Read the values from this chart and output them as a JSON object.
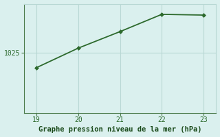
{
  "x": [
    19,
    20,
    21,
    22,
    23
  ],
  "y": [
    1023.0,
    1025.6,
    1027.8,
    1030.1,
    1030.0
  ],
  "line_color": "#2d6a2d",
  "marker_color": "#2d6a2d",
  "bg_color": "#daf0ee",
  "grid_color": "#b8d8d4",
  "xlabel": "Graphe pression niveau de la mer (hPa)",
  "xlabel_color": "#1a4a1a",
  "tick_color": "#2d6a2d",
  "ytick_value": 1025,
  "ytick_label": "1025",
  "ylim_min": 1017.0,
  "ylim_max": 1031.5,
  "xlim_min": 18.7,
  "xlim_max": 23.3,
  "xticks": [
    19,
    20,
    21,
    22,
    23
  ],
  "spine_color": "#5a8a5a",
  "xlabel_fontsize": 7.5,
  "tick_fontsize": 7
}
